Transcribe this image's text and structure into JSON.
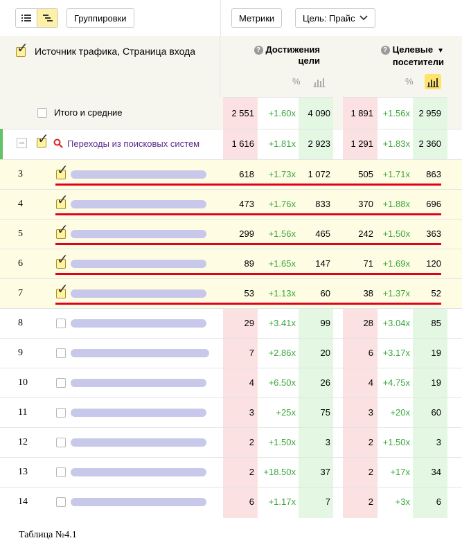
{
  "toolbar": {
    "groupings_label": "Группировки",
    "metrics_label": "Метрики",
    "goal_label": "Цель: Прайс"
  },
  "header": {
    "dimension_title": "Источник трафика, Страница входа",
    "metric1_line1": "Достижения",
    "metric1_line2": "цели",
    "metric2_line1": "Целевые",
    "metric2_line2": "посетители",
    "pct_symbol": "%",
    "help_glyph": "?",
    "sort_glyph": "▼"
  },
  "totals": {
    "label": "Итого и средние",
    "values": [
      "2 551",
      "+1.60x",
      "4 090",
      "1 891",
      "+1.56x",
      "2 959"
    ]
  },
  "group": {
    "label": "Переходы из поисковых систем",
    "collapse_glyph": "–",
    "values": [
      "1 616",
      "+1.81x",
      "2 923",
      "1 291",
      "+1.83x",
      "2 360"
    ]
  },
  "rows": [
    {
      "num": "3",
      "checked": true,
      "values": [
        "618",
        "+1.73x",
        "1 072",
        "505",
        "+1.71x",
        "863"
      ]
    },
    {
      "num": "4",
      "checked": true,
      "values": [
        "473",
        "+1.76x",
        "833",
        "370",
        "+1.88x",
        "696"
      ]
    },
    {
      "num": "5",
      "checked": true,
      "values": [
        "299",
        "+1.56x",
        "465",
        "242",
        "+1.50x",
        "363"
      ]
    },
    {
      "num": "6",
      "checked": true,
      "values": [
        "89",
        "+1.65x",
        "147",
        "71",
        "+1.69x",
        "120"
      ]
    },
    {
      "num": "7",
      "checked": true,
      "values": [
        "53",
        "+1.13x",
        "60",
        "38",
        "+1.37x",
        "52"
      ]
    },
    {
      "num": "8",
      "checked": false,
      "values": [
        "29",
        "+3.41x",
        "99",
        "28",
        "+3.04x",
        "85"
      ]
    },
    {
      "num": "9",
      "checked": false,
      "values": [
        "7",
        "+2.86x",
        "20",
        "6",
        "+3.17x",
        "19"
      ]
    },
    {
      "num": "10",
      "checked": false,
      "values": [
        "4",
        "+6.50x",
        "26",
        "4",
        "+4.75x",
        "19"
      ]
    },
    {
      "num": "11",
      "checked": false,
      "values": [
        "3",
        "+25x",
        "75",
        "3",
        "+20x",
        "60"
      ]
    },
    {
      "num": "12",
      "checked": false,
      "values": [
        "2",
        "+1.50x",
        "3",
        "2",
        "+1.50x",
        "3"
      ]
    },
    {
      "num": "13",
      "checked": false,
      "values": [
        "2",
        "+18.50x",
        "37",
        "2",
        "+17x",
        "34"
      ]
    },
    {
      "num": "14",
      "checked": false,
      "values": [
        "6",
        "+1.17x",
        "7",
        "2",
        "+3x",
        "6"
      ]
    }
  ],
  "caption": "Таблица №4.1",
  "colors": {
    "red_col": "#fbe1e1",
    "green_col": "#e3f7e3",
    "change_text": "#39a83b",
    "underline": "#e3001b",
    "group_link": "#5b2a8a",
    "search_icon": "#e02020"
  },
  "icons": {
    "view_list": "list-view-icon",
    "view_tree": "tree-view-icon",
    "dropdown": "chevron-down-icon",
    "search": "search-icon",
    "chart": "bar-chart-icon"
  }
}
